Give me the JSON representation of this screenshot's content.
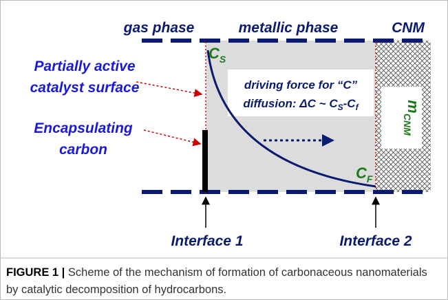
{
  "header": {
    "gas_phase": "gas phase",
    "metallic_phase": "metallic phase",
    "cnm": "CNM"
  },
  "left_labels": {
    "partially_active": [
      "Partially active",
      "catalyst surface"
    ],
    "encapsulating": [
      "Encapsulating",
      "carbon"
    ]
  },
  "concentration": {
    "cs": {
      "symbol": "C",
      "subscript": "S"
    },
    "cf": {
      "symbol": "C",
      "subscript": "F"
    }
  },
  "driving_force": {
    "line1": "driving force for “C”",
    "prefix": "diffusion: ",
    "delta": "ΔC",
    "approx": " ~ ",
    "cs": "C",
    "cs_sub": "S",
    "minus": "-C",
    "cf_sub": "f"
  },
  "mass": {
    "symbol": "m",
    "subscript": "CNM"
  },
  "interfaces": [
    "Interface 1",
    "Interface 2"
  ],
  "caption": {
    "label": "FIGURE 1 |",
    "text": "Scheme of the mechanism of formation of carbonaceous nanomaterials by catalytic decomposition of hydrocarbons."
  }
}
